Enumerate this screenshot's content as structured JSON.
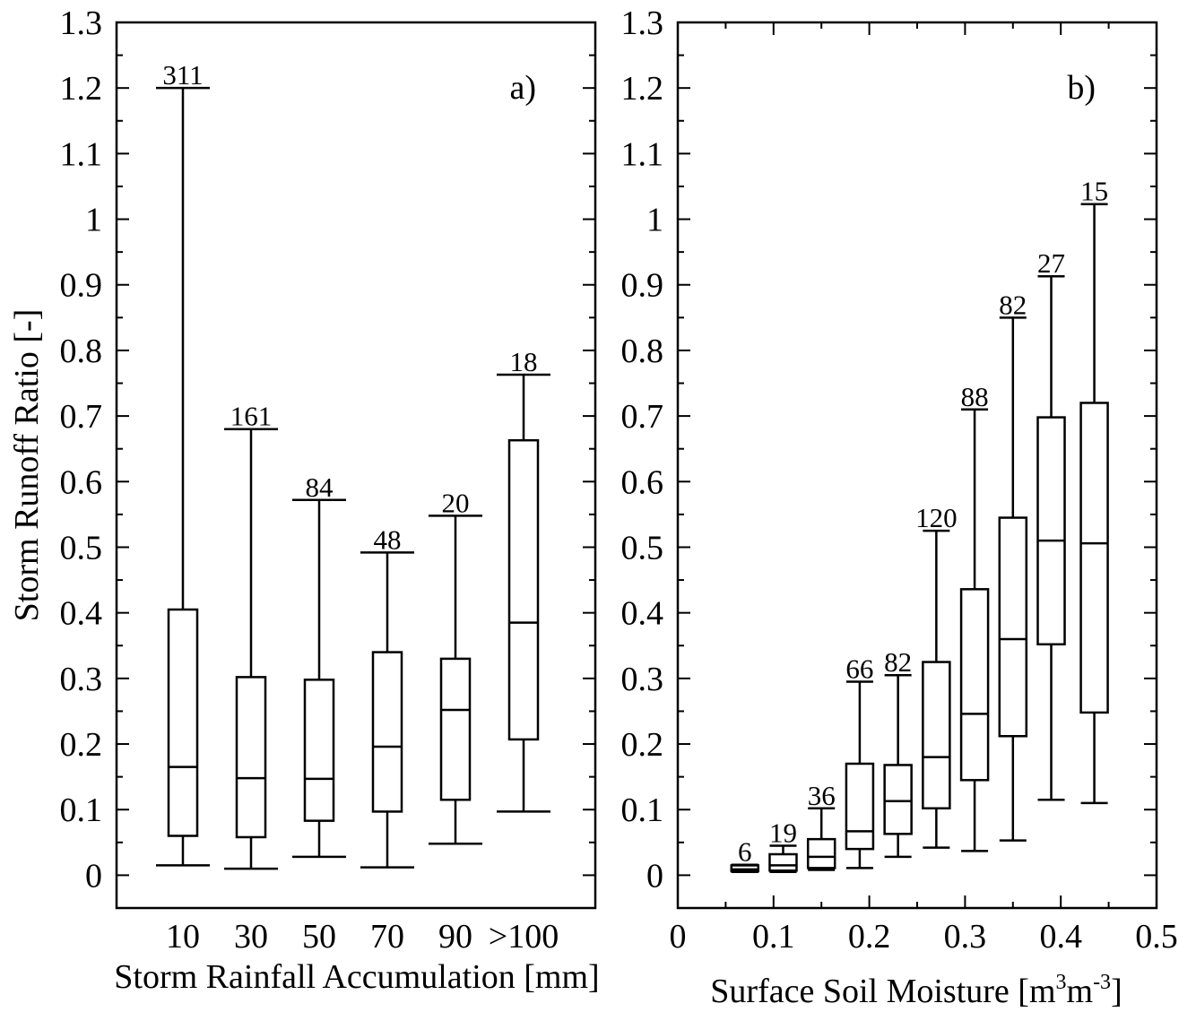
{
  "chart_data": [
    {
      "type": "box",
      "panel_label": "a)",
      "xlabel": "Storm Rainfall Accumulation [mm]",
      "ylabel": "Storm Runoff Ratio [-]",
      "ylim": [
        -0.05,
        1.3
      ],
      "y_ticks": [
        "0",
        "0.1",
        "0.2",
        "0.3",
        "0.4",
        "0.5",
        "0.6",
        "0.7",
        "0.8",
        "0.9",
        "1",
        "1.1",
        "1.2",
        "1.3"
      ],
      "categories": [
        "10",
        "30",
        "50",
        "70",
        "90",
        ">100"
      ],
      "boxes": [
        {
          "category": "10",
          "count": "311",
          "min": 0.015,
          "q1": 0.06,
          "median": 0.165,
          "q3": 0.405,
          "max": 1.2
        },
        {
          "category": "30",
          "count": "161",
          "min": 0.01,
          "q1": 0.058,
          "median": 0.148,
          "q3": 0.302,
          "max": 0.68
        },
        {
          "category": "50",
          "count": "84",
          "min": 0.028,
          "q1": 0.083,
          "median": 0.147,
          "q3": 0.298,
          "max": 0.572
        },
        {
          "category": "70",
          "count": "48",
          "min": 0.012,
          "q1": 0.097,
          "median": 0.196,
          "q3": 0.34,
          "max": 0.492
        },
        {
          "category": "90",
          "count": "20",
          "min": 0.048,
          "q1": 0.115,
          "median": 0.252,
          "q3": 0.33,
          "max": 0.548
        },
        {
          "category": ">100",
          "count": "18",
          "min": 0.097,
          "q1": 0.207,
          "median": 0.385,
          "q3": 0.663,
          "max": 0.763
        }
      ]
    },
    {
      "type": "box",
      "panel_label": "b)",
      "xlabel": "Surface Soil Moisture [m",
      "xlabel_sup1": "3",
      "xlabel_mid": "m",
      "xlabel_sup2": "-3",
      "xlabel_end": "]",
      "ylabel": "",
      "xlim": [
        0,
        0.5
      ],
      "ylim": [
        -0.05,
        1.3
      ],
      "x_ticks": [
        "0",
        "0.1",
        "0.2",
        "0.3",
        "0.4",
        "0.5"
      ],
      "y_ticks": [
        "0",
        "0.1",
        "0.2",
        "0.3",
        "0.4",
        "0.5",
        "0.6",
        "0.7",
        "0.8",
        "0.9",
        "1",
        "1.1",
        "1.2",
        "1.3"
      ],
      "boxes": [
        {
          "x": 0.07,
          "count": "6",
          "min": 0.005,
          "q1": 0.006,
          "median": 0.009,
          "q3": 0.015,
          "max": 0.016
        },
        {
          "x": 0.11,
          "count": "19",
          "min": 0.005,
          "q1": 0.007,
          "median": 0.015,
          "q3": 0.032,
          "max": 0.045
        },
        {
          "x": 0.15,
          "count": "36",
          "min": 0.008,
          "q1": 0.011,
          "median": 0.028,
          "q3": 0.055,
          "max": 0.102
        },
        {
          "x": 0.19,
          "count": "66",
          "min": 0.011,
          "q1": 0.04,
          "median": 0.067,
          "q3": 0.17,
          "max": 0.295
        },
        {
          "x": 0.23,
          "count": "82",
          "min": 0.028,
          "q1": 0.063,
          "median": 0.113,
          "q3": 0.168,
          "max": 0.305
        },
        {
          "x": 0.27,
          "count": "120",
          "min": 0.042,
          "q1": 0.102,
          "median": 0.18,
          "q3": 0.325,
          "max": 0.525
        },
        {
          "x": 0.31,
          "count": "88",
          "min": 0.037,
          "q1": 0.145,
          "median": 0.246,
          "q3": 0.436,
          "max": 0.71
        },
        {
          "x": 0.35,
          "count": "82",
          "min": 0.053,
          "q1": 0.212,
          "median": 0.36,
          "q3": 0.545,
          "max": 0.85
        },
        {
          "x": 0.39,
          "count": "27",
          "min": 0.115,
          "q1": 0.352,
          "median": 0.51,
          "q3": 0.698,
          "max": 0.913
        },
        {
          "x": 0.435,
          "count": "15",
          "min": 0.11,
          "q1": 0.248,
          "median": 0.506,
          "q3": 0.72,
          "max": 1.023
        }
      ]
    }
  ]
}
